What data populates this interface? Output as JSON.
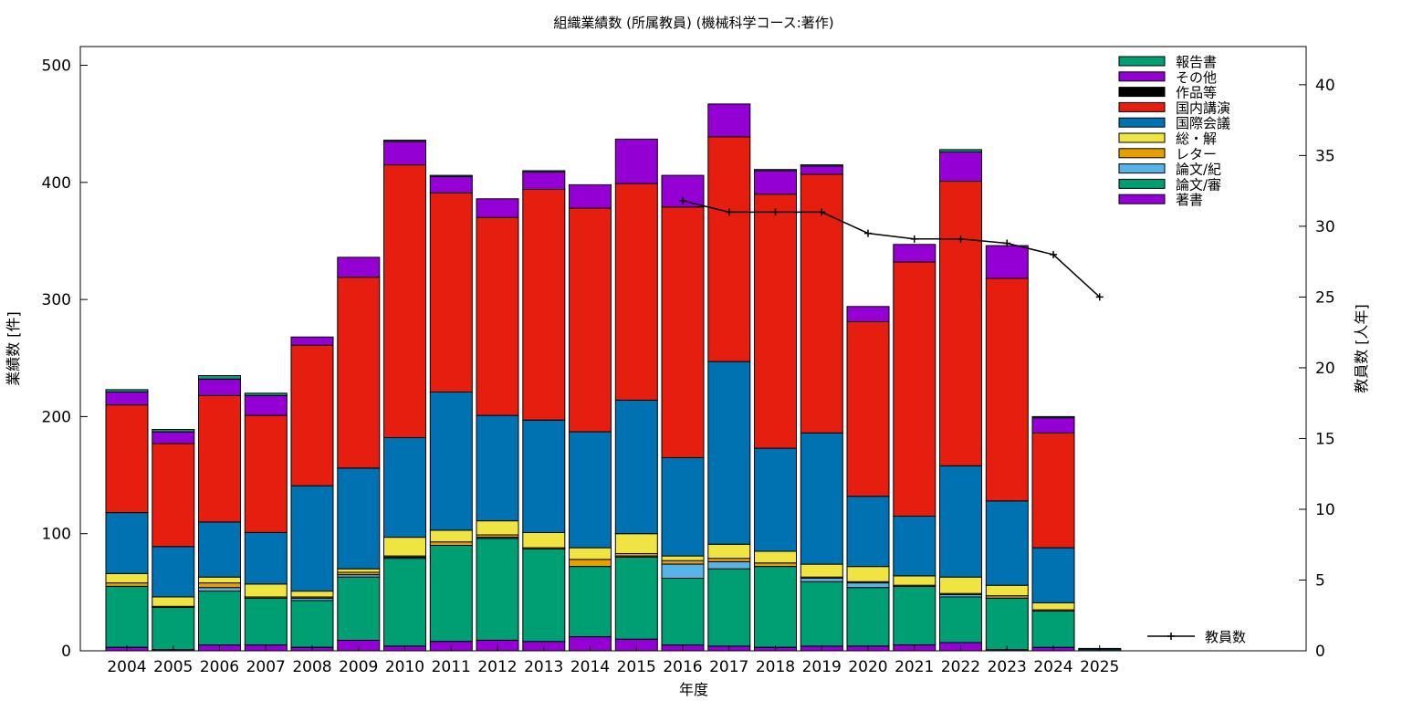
{
  "chart_data": {
    "type": "bar",
    "stacked": true,
    "title": "組織業績数 (所属教員) (機械科学コース:著作)",
    "xlabel": "年度",
    "ylabel": "業績数 [件]",
    "y2label": "教員数 [人年]",
    "ylim": [
      0,
      516
    ],
    "y2lim": [
      0,
      42.7
    ],
    "yticks": [
      0,
      100,
      200,
      300,
      400,
      500
    ],
    "y2ticks": [
      0,
      5,
      10,
      15,
      20,
      25,
      30,
      35,
      40
    ],
    "grid": false,
    "legend_position": "top-right",
    "categories": [
      "2004",
      "2005",
      "2006",
      "2007",
      "2008",
      "2009",
      "2010",
      "2011",
      "2012",
      "2013",
      "2014",
      "2015",
      "2016",
      "2017",
      "2018",
      "2019",
      "2020",
      "2021",
      "2022",
      "2023",
      "2024",
      "2025"
    ],
    "series": [
      {
        "name": "著書",
        "color": "#9400d3",
        "values": [
          3,
          1,
          5,
          5,
          3,
          9,
          4,
          8,
          9,
          8,
          12,
          10,
          5,
          4,
          3,
          4,
          4,
          5,
          7,
          1,
          3,
          0
        ]
      },
      {
        "name": "論文/審",
        "color": "#009e73",
        "values": [
          52,
          36,
          46,
          40,
          40,
          54,
          75,
          82,
          87,
          79,
          60,
          70,
          57,
          66,
          69,
          55,
          50,
          50,
          39,
          44,
          31,
          0
        ]
      },
      {
        "name": "論文/紀",
        "color": "#56b4e9",
        "values": [
          0,
          0,
          3,
          0,
          2,
          2,
          1,
          0,
          1,
          0,
          0,
          1,
          12,
          6,
          0,
          3,
          4,
          0,
          2,
          0,
          0,
          1
        ]
      },
      {
        "name": "レター",
        "color": "#e69f00",
        "values": [
          3,
          1,
          4,
          1,
          1,
          2,
          1,
          3,
          2,
          1,
          6,
          2,
          3,
          3,
          3,
          1,
          1,
          1,
          1,
          2,
          1,
          0
        ]
      },
      {
        "name": "総・解",
        "color": "#f0e442",
        "values": [
          8,
          8,
          5,
          11,
          5,
          3,
          16,
          10,
          12,
          13,
          10,
          17,
          4,
          12,
          10,
          11,
          13,
          8,
          14,
          9,
          6,
          0
        ]
      },
      {
        "name": "国際会議",
        "color": "#0072b2",
        "values": [
          52,
          43,
          47,
          44,
          90,
          86,
          85,
          118,
          90,
          96,
          99,
          114,
          84,
          156,
          88,
          112,
          60,
          51,
          95,
          72,
          47,
          0
        ]
      },
      {
        "name": "国内講演",
        "color": "#e51e10",
        "values": [
          92,
          88,
          108,
          100,
          120,
          163,
          233,
          170,
          169,
          197,
          191,
          185,
          214,
          192,
          217,
          221,
          149,
          217,
          243,
          190,
          98,
          0
        ]
      },
      {
        "name": "作品等",
        "color": "#000000",
        "values": [
          0,
          0,
          0,
          0,
          0,
          0,
          0,
          0,
          0,
          0,
          0,
          0,
          0,
          0,
          0,
          0,
          0,
          0,
          0,
          0,
          0,
          0
        ]
      },
      {
        "name": "その他",
        "color": "#9400d3",
        "values": [
          11,
          10,
          14,
          17,
          7,
          17,
          20,
          14,
          16,
          15,
          20,
          38,
          27,
          28,
          20,
          7,
          13,
          15,
          25,
          28,
          13,
          0
        ]
      },
      {
        "name": "報告書",
        "color": "#009e73",
        "values": [
          2,
          2,
          3,
          2,
          0,
          0,
          1,
          1,
          0,
          1,
          0,
          0,
          0,
          0,
          1,
          1,
          0,
          0,
          2,
          0,
          1,
          1
        ]
      }
    ],
    "line_series": {
      "name": "教員数",
      "color": "#000000",
      "axis": "y2",
      "x": [
        "2016",
        "2017",
        "2018",
        "2019",
        "2020",
        "2021",
        "2022",
        "2023",
        "2024",
        "2025"
      ],
      "values": [
        31.8,
        31.0,
        31.0,
        31.0,
        29.5,
        29.1,
        29.1,
        28.8,
        28.0,
        25.0
      ]
    }
  }
}
